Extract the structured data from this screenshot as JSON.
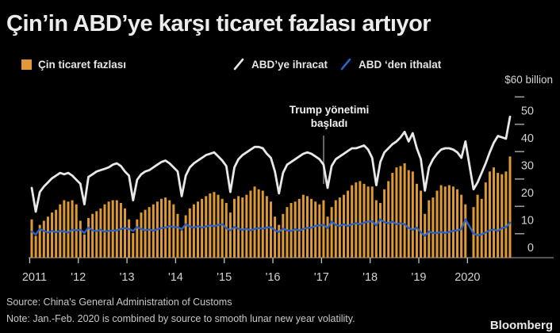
{
  "title": "Çin’in ABD’ye karşı ticaret fazlası artıyor",
  "legend": [
    {
      "label": "Çin ticaret fazlası",
      "marker": "square",
      "color": "#e0983a"
    },
    {
      "label": "ABD’ye ihracat",
      "marker": "slash",
      "color": "#e8e8e6"
    },
    {
      "label": "ABD ‘den ithalat",
      "marker": "slash",
      "color": "#2d62c4"
    }
  ],
  "axis_unit_label": "$60 billion",
  "annotation": {
    "line1": "Trump yönetimi",
    "line2": "başladı",
    "points_to": "2017-01"
  },
  "footer": {
    "source": "Source: China's General Administration of Customs",
    "note": "Note: Jan.-Feb. 2020 is combined by source to smooth lunar new year volatility.",
    "brand": "Bloomberg"
  },
  "chart_data": {
    "type": "bar",
    "subtype": "monthly bars with two line overlays",
    "frequency": "monthly",
    "x_start": "2011-01",
    "x_end": "2020-11",
    "x_note": "Jan and Feb 2020 are combined into a single point (gap left at Jan 2020 slot)",
    "gap_before_index": 108,
    "x_tick_labels": [
      "2011",
      "'12",
      "'13",
      "'14",
      "'15",
      "'16",
      "'17",
      "'18",
      "'19",
      "2020"
    ],
    "y_ticks": [
      0,
      10,
      20,
      30,
      40,
      50
    ],
    "y_minor_ticks": [
      5,
      15,
      25,
      35,
      45,
      55
    ],
    "ylim": [
      0,
      60
    ],
    "unit": "$ billion",
    "legend_position": "top",
    "grid": false,
    "series": [
      {
        "name": "Çin ticaret fazlası",
        "type": "bar",
        "color": "#dc9a33",
        "values": [
          14,
          8,
          12,
          13.5,
          15,
          16.5,
          17.5,
          19.5,
          21,
          20.5,
          21,
          19.5,
          13.5,
          8.5,
          14.5,
          16,
          17,
          18,
          19.5,
          20.5,
          21,
          21,
          20,
          18,
          14,
          9,
          14,
          16.5,
          17.5,
          18.5,
          19.5,
          20.5,
          21.5,
          22,
          21,
          19.5,
          16,
          10,
          15.5,
          18,
          19.5,
          20.5,
          21.5,
          22.5,
          23.5,
          24,
          23,
          21.5,
          20,
          16.5,
          21.5,
          22.5,
          22,
          23,
          24.5,
          26,
          25,
          24.5,
          22.5,
          20.5,
          15,
          12,
          16,
          18.5,
          20,
          20.5,
          21.5,
          23,
          22.5,
          21.5,
          20.5,
          19.5,
          21,
          15,
          18.5,
          21,
          22,
          23,
          24.5,
          26.5,
          27.5,
          28,
          27,
          26,
          26,
          21,
          20,
          25,
          28,
          31,
          33,
          33.5,
          34.5,
          32,
          31.5,
          27,
          24.5,
          16,
          21,
          22,
          24.5,
          26.5,
          26,
          26.5,
          26,
          25,
          23,
          19.5,
          18.5,
          23,
          21.5,
          27.5,
          31.5,
          33,
          31,
          30.5,
          31.5,
          37
        ]
      },
      {
        "name": "ABD’ye ihracat",
        "type": "line",
        "color": "#e8e8e6",
        "values": [
          25.5,
          16.8,
          24,
          26,
          27.5,
          29,
          30,
          31,
          30.5,
          31,
          30,
          28.5,
          27,
          19.5,
          29.5,
          30.5,
          31.5,
          32,
          32.5,
          33,
          34,
          34.5,
          33.5,
          31.5,
          30,
          21,
          28.5,
          30.5,
          31.5,
          32,
          33,
          34,
          35,
          35.5,
          34.5,
          33,
          31.5,
          22.5,
          30,
          33,
          34.5,
          35.5,
          36.5,
          37.5,
          38,
          38.5,
          37,
          35.5,
          33.5,
          24,
          33,
          36,
          37.5,
          38.5,
          39.5,
          40.5,
          40.5,
          40,
          38,
          36.5,
          31.5,
          23.5,
          31,
          34,
          35,
          36,
          37,
          38,
          38.5,
          38,
          37,
          36,
          34,
          25.5,
          33.5,
          36,
          37,
          38,
          39,
          40,
          40,
          40.5,
          41,
          39.5,
          36.5,
          26.5,
          35,
          38.5,
          40,
          41.5,
          42.5,
          44,
          46,
          42.5,
          45.5,
          40,
          36,
          24.5,
          33,
          36,
          38,
          39.5,
          40,
          40,
          39.5,
          38.5,
          36.5,
          42.5,
          25,
          27.5,
          31,
          34.5,
          38.5,
          42,
          44.5,
          44,
          43.5,
          51.5
        ]
      },
      {
        "name": "ABD ‘den ithalat",
        "type": "line",
        "color": "#2d62c4",
        "values": [
          9.5,
          8.5,
          10.5,
          9.8,
          9.2,
          9.8,
          9.3,
          9.8,
          9.6,
          9.2,
          10.2,
          10,
          10.2,
          9,
          11,
          10,
          9.7,
          10.2,
          9.5,
          9.8,
          9.9,
          10,
          10.5,
          10.8,
          10.5,
          9.8,
          11.2,
          10.5,
          10,
          10.3,
          9.9,
          10.4,
          10.8,
          11,
          11.5,
          11.2,
          11.2,
          10.4,
          12.2,
          11.4,
          11,
          11.5,
          11,
          11.4,
          11.8,
          11.5,
          12,
          12.2,
          10.8,
          10,
          11.2,
          10.6,
          10.2,
          10.6,
          10,
          10.5,
          10.8,
          10.6,
          11,
          11.2,
          10,
          9.4,
          10.6,
          10,
          9.8,
          10.4,
          9.9,
          10.5,
          10.9,
          11,
          11.6,
          11.8,
          12,
          10.8,
          13.2,
          12,
          11.6,
          12.2,
          11.6,
          12.2,
          12.6,
          12.2,
          12.8,
          13.2,
          13.3,
          11.8,
          14,
          13,
          12.6,
          13.2,
          12.2,
          12.6,
          12.2,
          10.8,
          10.2,
          11,
          9.2,
          8,
          9.6,
          9,
          9,
          9.4,
          9,
          9.4,
          9.8,
          10,
          10.4,
          14,
          8.8,
          8.2,
          8.5,
          9.2,
          10,
          10.3,
          9.8,
          10.8,
          11.2,
          12.8
        ]
      }
    ]
  }
}
